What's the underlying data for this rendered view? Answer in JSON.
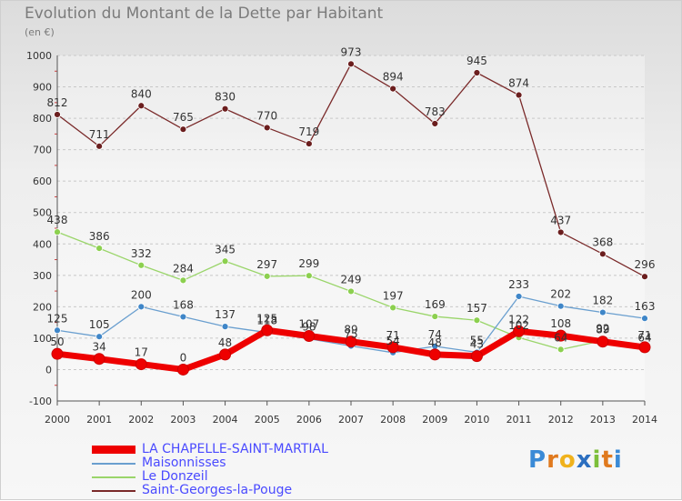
{
  "title": "Evolution du Montant de la Dette par Habitant",
  "unit": "(en €)",
  "logo": {
    "text": "Proxiti",
    "letters": [
      "P",
      "r",
      "o",
      "x",
      "i",
      "t",
      "i"
    ],
    "colors": [
      "#3a8ad6",
      "#e07a1f",
      "#f0b21c",
      "#2c6fc0",
      "#7cbf3a",
      "#e07a1f",
      "#3a8ad6"
    ]
  },
  "chart_data": {
    "type": "line",
    "title": "Evolution du Montant de la Dette par Habitant",
    "ylabel": "(en €)",
    "xlabel": "",
    "x": [
      "2000",
      "2001",
      "2002",
      "2003",
      "2004",
      "2005",
      "2006",
      "2007",
      "2008",
      "2009",
      "2010",
      "2011",
      "2012",
      "2013",
      "2014"
    ],
    "ylim": [
      -100,
      1000
    ],
    "yticks": [
      -100,
      0,
      100,
      200,
      300,
      400,
      500,
      600,
      700,
      800,
      900,
      1000
    ],
    "ytick_labels": [
      "-100",
      "0",
      "100",
      "200",
      "300",
      "400",
      "500",
      "600",
      "700",
      "800",
      "900",
      "1000"
    ],
    "grid": "horizontal dashed",
    "legend": "bottom-left",
    "series": [
      {
        "name": "Saint-Georges-la-Pouge",
        "color": "#7a2a2a",
        "marker": "#6b1e1e",
        "values": [
          812,
          711,
          840,
          765,
          830,
          770,
          719,
          973,
          894,
          783,
          945,
          874,
          437,
          368,
          296
        ]
      },
      {
        "name": "Le Donzeil",
        "color": "#9ad56a",
        "marker": "#8cd04f",
        "values": [
          438,
          386,
          332,
          284,
          345,
          297,
          299,
          249,
          197,
          169,
          157,
          102,
          64,
          92,
          64
        ]
      },
      {
        "name": "Maisonnisses",
        "color": "#6a9fcf",
        "marker": "#3f86c8",
        "values": [
          125,
          105,
          200,
          168,
          137,
          118,
          98,
          75,
          54,
          74,
          55,
          233,
          202,
          182,
          163
        ]
      },
      {
        "name": "LA CHAPELLE-SAINT-MARTIAL",
        "color": "#ee0000",
        "marker": "#ee0000",
        "values": [
          50,
          34,
          17,
          0,
          48,
          125,
          107,
          89,
          71,
          48,
          43,
          122,
          108,
          89,
          71
        ]
      }
    ],
    "data_labels": [
      {
        "series": "Saint-Georges-la-Pouge",
        "labels": [
          "812",
          "711",
          "840",
          "765",
          "830",
          "770",
          "719",
          "973",
          "894",
          "783",
          "945",
          "874",
          "437",
          "368",
          "296"
        ]
      },
      {
        "series": "Le Donzeil",
        "labels": [
          "438",
          "386",
          "332",
          "284",
          "345",
          "297",
          "299",
          "249",
          "197",
          "169",
          "157",
          "102",
          "64",
          "92",
          "64"
        ]
      },
      {
        "series": "Maisonnisses",
        "labels": [
          "125",
          "105",
          "200",
          "168",
          "137",
          "118",
          "98",
          "75",
          "54",
          "74",
          "55",
          "233",
          "202",
          "182",
          "163"
        ]
      },
      {
        "series": "LA CHAPELLE-SAINT-MARTIAL",
        "labels": [
          "50",
          "34",
          "17",
          "0",
          "48",
          "125",
          "107",
          "89",
          "71",
          "48",
          "43",
          "122",
          "108",
          "89",
          "71"
        ]
      }
    ]
  },
  "legend_items": [
    {
      "label": "LA CHAPELLE-SAINT-MARTIAL",
      "color": "#ee0000",
      "text_color": "#4a4aff",
      "thick": true
    },
    {
      "label": "Maisonnisses",
      "color": "#6a9fcf",
      "text_color": "#4a4aff",
      "thick": false
    },
    {
      "label": "Le Donzeil",
      "color": "#9ad56a",
      "text_color": "#4a4aff",
      "thick": false
    },
    {
      "label": "Saint-Georges-la-Pouge",
      "color": "#7a2a2a",
      "text_color": "#4a4aff",
      "thick": false
    }
  ]
}
